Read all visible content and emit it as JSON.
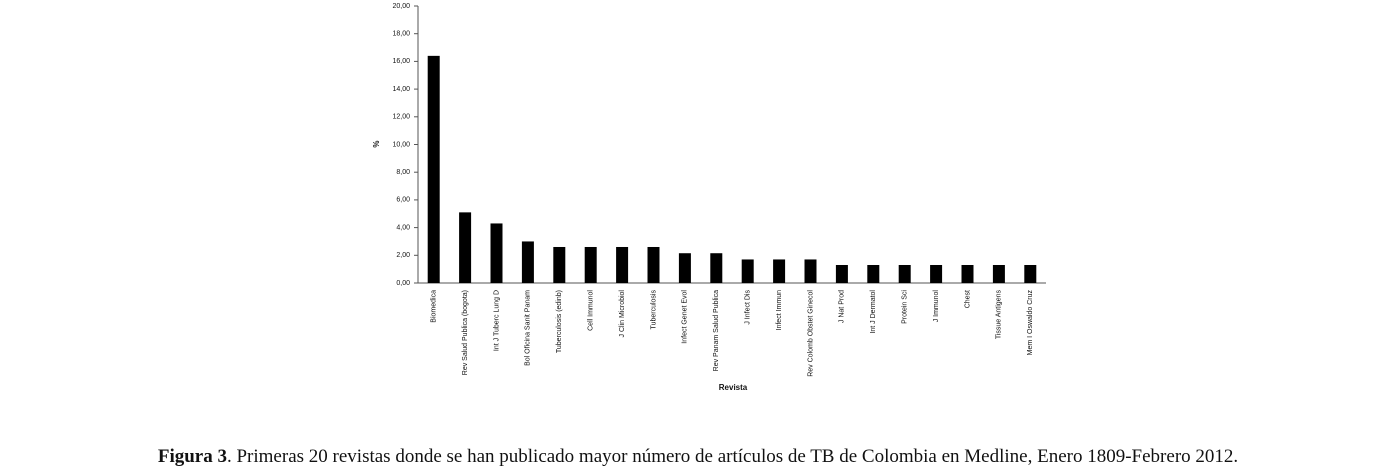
{
  "chart_data": {
    "type": "bar",
    "y_label": "%",
    "x_label": "Revista",
    "caption_label": "Figura 3",
    "caption_text": ". Primeras 20 revistas donde se han publicado mayor número de artículos de TB de Colombia en Medline, Enero 1809-Febrero 2012.",
    "categories": [
      "Biomedica",
      "Rev Salud Publica (bogota)",
      "Int J Tuberc Lung D",
      "Bol Oficina Sanit Panam",
      "Tuberculosis (edinb)",
      "Cell Immunol",
      "J Clin Microbiol",
      "Tuberculosis",
      "Infect Genet Evol",
      "Rev Panam Salud Publica",
      "J Infect Dis",
      "Infect Immun",
      "Rev Colomb Obstet Ginecol",
      "J Nat Prod",
      "Int J Dermatol",
      "Protein Sci",
      "J Immunol",
      "Chest",
      "Tissue Antigens",
      "Mem I Oswaldo Cruz"
    ],
    "values": [
      16.4,
      5.1,
      4.3,
      3.0,
      2.6,
      2.6,
      2.6,
      2.6,
      2.15,
      2.15,
      1.7,
      1.7,
      1.7,
      1.3,
      1.3,
      1.3,
      1.3,
      1.3,
      1.3,
      1.3
    ],
    "color": "#000000",
    "ylim": [
      0,
      20
    ],
    "yticks": [
      {
        "value": 0,
        "label": "0,00"
      },
      {
        "value": 2,
        "label": "2,00"
      },
      {
        "value": 4,
        "label": "4,00"
      },
      {
        "value": 6,
        "label": "6,00"
      },
      {
        "value": 8,
        "label": "8,00"
      },
      {
        "value": 10,
        "label": "10,00"
      },
      {
        "value": 12,
        "label": "12,00"
      },
      {
        "value": 14,
        "label": "14,00"
      },
      {
        "value": 16,
        "label": "16,00"
      },
      {
        "value": 18,
        "label": "18,00"
      },
      {
        "value": 20,
        "label": "20,00"
      }
    ],
    "grid": false
  }
}
